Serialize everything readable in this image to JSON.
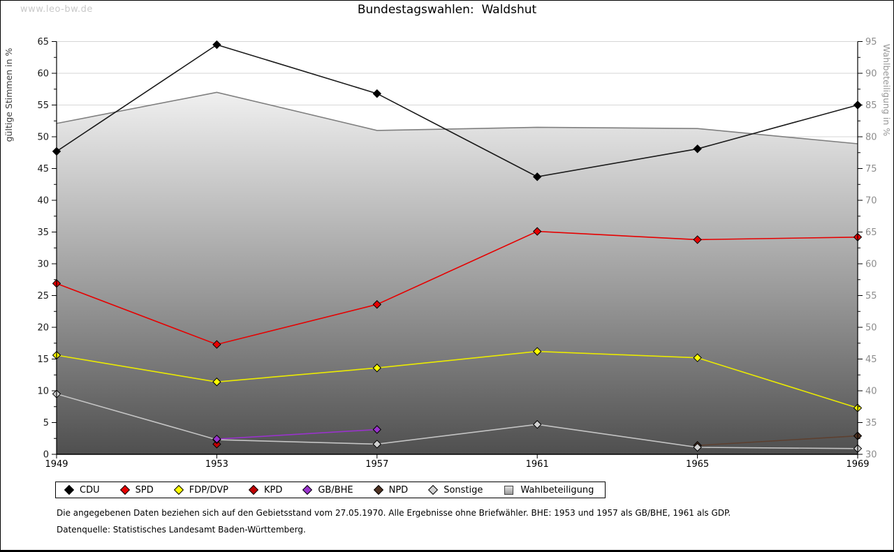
{
  "watermark": "www.leo-bw.de",
  "title": "Bundestagswahlen:  Waldshut",
  "footnotes": {
    "line1": "Die angegebenen Daten beziehen sich auf den Gebietsstand vom 27.05.1970. Alle Ergebnisse ohne Briefwähler. BHE: 1953 und 1957 als GB/BHE, 1961 als GDP.",
    "line2": "Datenquelle: Statistisches Landesamt Baden-Württemberg."
  },
  "legend": {
    "items": [
      {
        "label": "CDU",
        "marker": "diamond",
        "color": "#000000"
      },
      {
        "label": "SPD",
        "marker": "diamond",
        "color": "#e60000"
      },
      {
        "label": "FDP/DVP",
        "marker": "diamond",
        "color": "#ffff00"
      },
      {
        "label": "KPD",
        "marker": "diamond",
        "color": "#c00000"
      },
      {
        "label": "GB/BHE",
        "marker": "diamond",
        "color": "#9933cc"
      },
      {
        "label": "NPD",
        "marker": "diamond",
        "color": "#4f3222"
      },
      {
        "label": "Sonstige",
        "marker": "diamond",
        "color": "#d0d0d0"
      },
      {
        "label": "Wahlbeteiligung",
        "marker": "square",
        "color": "#bfbfbf"
      }
    ]
  },
  "chart_data": {
    "type": "line",
    "title": "Bundestagswahlen: Waldshut",
    "x_ticks": [
      1949,
      1953,
      1957,
      1961,
      1965,
      1969
    ],
    "left_axis": {
      "label": "gültige Stimmen in %",
      "min": 0,
      "max": 65,
      "tick_step": 5,
      "minor_step": 2.5
    },
    "right_axis": {
      "label": "Wahlbeteiligung in %",
      "min": 30,
      "max": 95,
      "tick_step": 5,
      "minor_step": 2.5
    },
    "grid": true,
    "legend_position": "bottom",
    "series": [
      {
        "name": "CDU",
        "axis": "left",
        "style": "line",
        "color": "#000000",
        "line_color": "#1a1a1a",
        "x": [
          1949,
          1953,
          1957,
          1961,
          1965,
          1969
        ],
        "values": [
          47.7,
          64.5,
          56.8,
          43.7,
          48.1,
          55.0
        ]
      },
      {
        "name": "SPD",
        "axis": "left",
        "style": "line",
        "color": "#e60000",
        "line_color": "#e60000",
        "x": [
          1949,
          1953,
          1957,
          1961,
          1965,
          1969
        ],
        "values": [
          26.9,
          17.3,
          23.6,
          35.1,
          33.8,
          34.2
        ]
      },
      {
        "name": "FDP/DVP",
        "axis": "left",
        "style": "line",
        "color": "#ffff00",
        "line_color": "#ebeb00",
        "x": [
          1949,
          1953,
          1957,
          1961,
          1965,
          1969
        ],
        "values": [
          15.6,
          11.4,
          13.6,
          16.2,
          15.2,
          7.3
        ]
      },
      {
        "name": "KPD",
        "axis": "left",
        "style": "line",
        "color": "#c00000",
        "line_color": "#c00000",
        "x": [
          1953
        ],
        "values": [
          1.6
        ]
      },
      {
        "name": "GB/BHE",
        "axis": "left",
        "style": "line",
        "color": "#9933cc",
        "line_color": "#9933cc",
        "x": [
          1953,
          1957
        ],
        "values": [
          2.4,
          3.9
        ]
      },
      {
        "name": "NPD",
        "axis": "left",
        "style": "line",
        "color": "#4f3222",
        "line_color": "#5d4030",
        "x": [
          1965,
          1969
        ],
        "values": [
          1.4,
          2.9
        ]
      },
      {
        "name": "Sonstige",
        "axis": "left",
        "style": "line",
        "color": "#d0d0d0",
        "line_color": "#c4c4c4",
        "x": [
          1949,
          1953,
          1957,
          1961,
          1965,
          1969
        ],
        "values": [
          9.5,
          2.3,
          1.6,
          4.7,
          1.1,
          0.9
        ]
      },
      {
        "name": "Wahlbeteiligung",
        "axis": "right",
        "style": "area",
        "color": "#7f7f7f",
        "line_color": "#7f7f7f",
        "x": [
          1949,
          1953,
          1957,
          1961,
          1965,
          1969
        ],
        "values": [
          82.1,
          87.0,
          81.0,
          81.5,
          81.3,
          78.9
        ]
      }
    ]
  }
}
